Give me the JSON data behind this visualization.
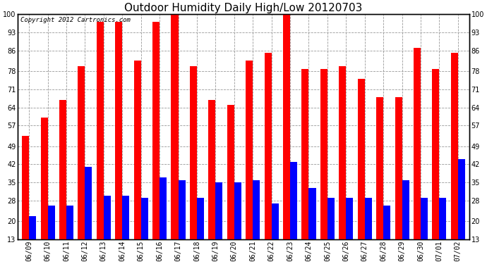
{
  "title": "Outdoor Humidity Daily High/Low 20120703",
  "copyright": "Copyright 2012 Cartronics.com",
  "dates": [
    "06/09",
    "06/10",
    "06/11",
    "06/12",
    "06/13",
    "06/14",
    "06/15",
    "06/16",
    "06/17",
    "06/18",
    "06/19",
    "06/20",
    "06/21",
    "06/22",
    "06/23",
    "06/24",
    "06/25",
    "06/26",
    "06/27",
    "06/28",
    "06/29",
    "06/30",
    "07/01",
    "07/02"
  ],
  "highs": [
    53,
    60,
    67,
    80,
    97,
    97,
    82,
    97,
    100,
    80,
    67,
    65,
    82,
    85,
    100,
    79,
    79,
    80,
    75,
    68,
    68,
    87,
    79,
    85
  ],
  "lows": [
    22,
    26,
    26,
    41,
    30,
    30,
    29,
    37,
    36,
    29,
    35,
    35,
    36,
    27,
    43,
    33,
    29,
    29,
    29,
    26,
    36,
    29,
    29,
    44
  ],
  "high_color": "#ff0000",
  "low_color": "#0000ff",
  "bg_color": "#ffffff",
  "plot_bg_color": "#ffffff",
  "grid_color": "#999999",
  "yticks": [
    13,
    20,
    28,
    35,
    42,
    49,
    57,
    64,
    71,
    78,
    86,
    93,
    100
  ],
  "ymin": 13,
  "ymax": 100,
  "bar_width": 0.38,
  "title_fontsize": 11,
  "tick_fontsize": 7,
  "copyright_fontsize": 6.5
}
